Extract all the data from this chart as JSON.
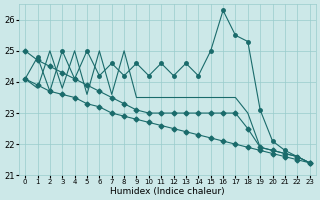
{
  "xlabel": "Humidex (Indice chaleur)",
  "bg_color": "#cce8e8",
  "grid_color": "#99cccc",
  "line_color": "#1a6b6b",
  "xlim": [
    -0.5,
    23.5
  ],
  "ylim": [
    21.0,
    26.5
  ],
  "yticks": [
    21,
    22,
    23,
    24,
    25,
    26
  ],
  "xticks": [
    0,
    1,
    2,
    3,
    4,
    5,
    6,
    7,
    8,
    9,
    10,
    11,
    12,
    13,
    14,
    15,
    16,
    17,
    18,
    19,
    20,
    21,
    22,
    23
  ],
  "series_main": [
    24.1,
    24.8,
    23.7,
    25.0,
    24.1,
    25.0,
    24.2,
    24.6,
    24.2,
    24.6,
    24.2,
    24.6,
    24.2,
    24.6,
    24.2,
    25.0,
    26.3,
    25.5,
    25.3,
    23.1,
    22.1,
    21.8,
    21.6,
    21.4
  ],
  "series_trend1": [
    25.0,
    24.7,
    24.5,
    24.3,
    24.1,
    23.9,
    23.7,
    23.5,
    23.3,
    23.1,
    23.0,
    23.0,
    23.0,
    23.0,
    23.0,
    23.0,
    23.0,
    23.0,
    22.5,
    21.9,
    21.8,
    21.7,
    21.6,
    21.4
  ],
  "series_trend2": [
    24.1,
    23.9,
    23.7,
    23.6,
    23.5,
    23.3,
    23.2,
    23.0,
    22.9,
    22.8,
    22.7,
    22.6,
    22.5,
    22.4,
    22.3,
    22.2,
    22.1,
    22.0,
    21.9,
    21.8,
    21.7,
    21.6,
    21.5,
    21.4
  ],
  "series_osc": [
    24.1,
    23.8,
    25.0,
    23.8,
    25.0,
    23.6,
    25.0,
    23.6,
    25.0,
    23.5,
    23.5,
    23.5,
    23.5,
    23.5,
    23.5,
    23.5,
    23.5,
    23.5,
    23.0,
    21.9,
    21.8,
    21.7,
    21.6,
    21.4
  ]
}
